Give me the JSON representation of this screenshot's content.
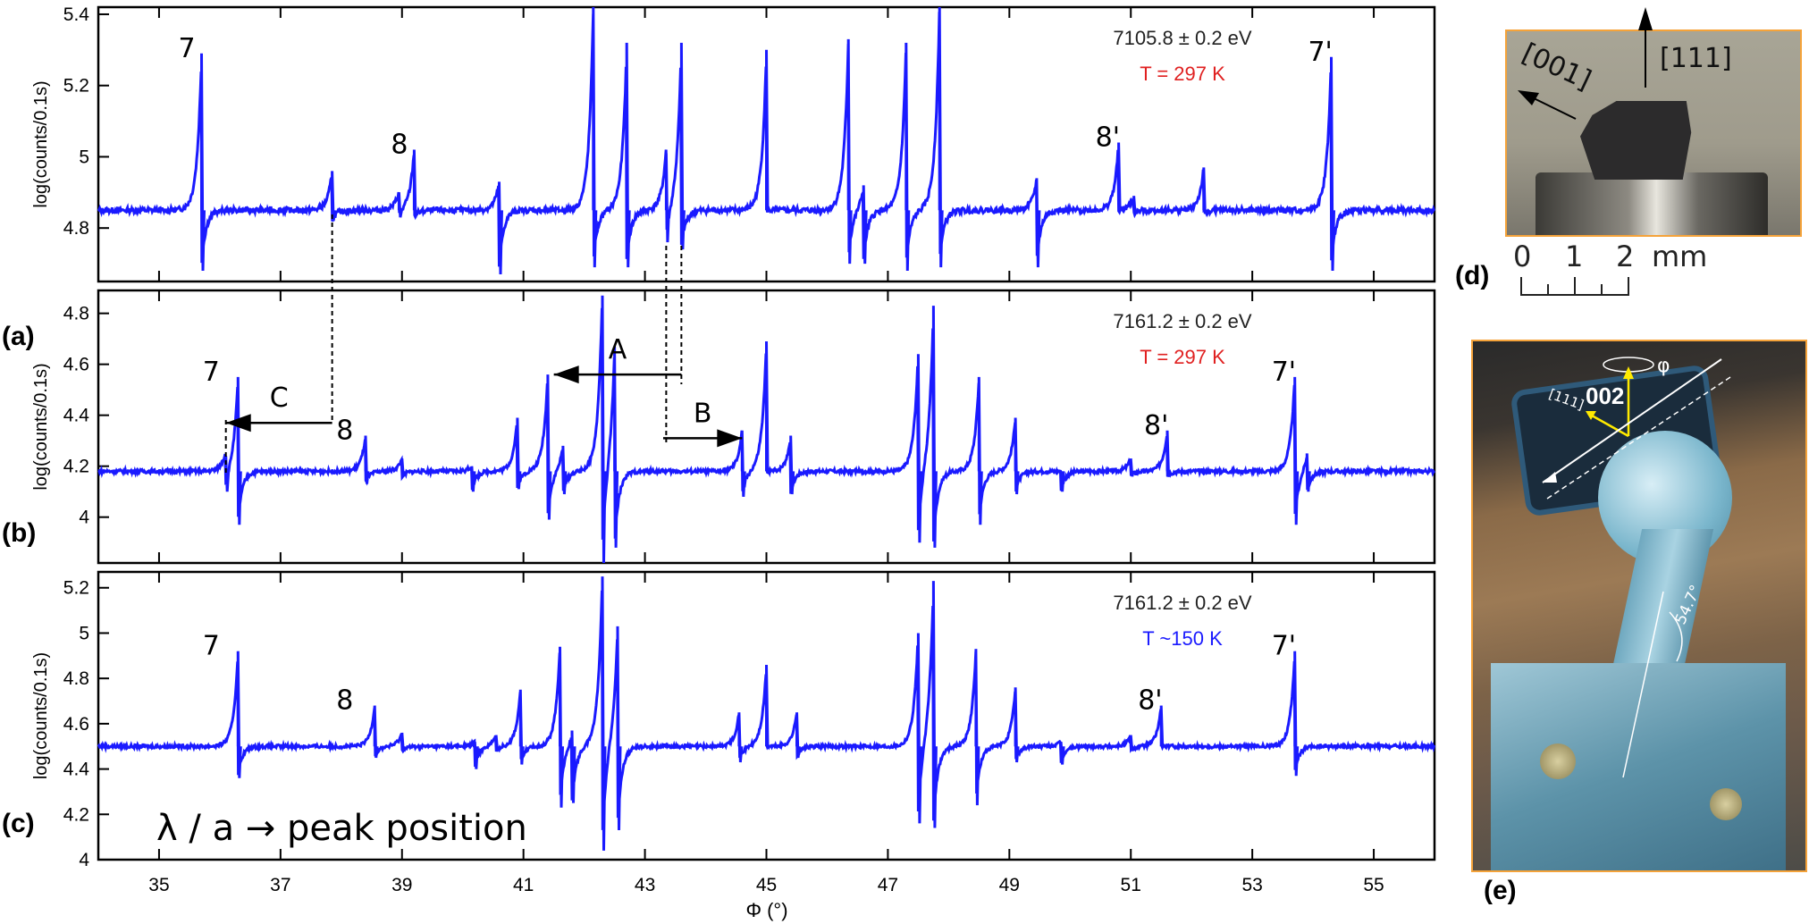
{
  "chart_data": [
    {
      "panel": "(a)",
      "type": "line",
      "annotation_energy": "7105.8 ± 0.2 eV",
      "annotation_temperature": "T = 297 K",
      "temperature_color": "#e02020",
      "ylabel": "log(counts/0.1s)",
      "xlabel": "",
      "xlim": [
        34,
        56
      ],
      "ylim": [
        4.65,
        5.42
      ],
      "yticks": [
        4.8,
        5,
        5.2,
        5.4
      ],
      "baseline": 4.85,
      "peak_labels": [
        {
          "text": "7",
          "x": 35.7,
          "y": 5.29
        },
        {
          "text": "8",
          "x": 39.2,
          "y": 5.02
        },
        {
          "text": "8'",
          "x": 50.8,
          "y": 5.04
        },
        {
          "text": "7'",
          "x": 54.3,
          "y": 5.28
        }
      ],
      "peaks": [
        {
          "x": 35.7,
          "max": 5.29,
          "min": 4.68
        },
        {
          "x": 37.85,
          "max": 4.96,
          "min": 4.82
        },
        {
          "x": 38.95,
          "max": 4.9,
          "min": 4.83
        },
        {
          "x": 39.2,
          "max": 5.02,
          "min": 4.83
        },
        {
          "x": 40.6,
          "max": 4.93,
          "min": 4.67
        },
        {
          "x": 42.15,
          "max": 5.42,
          "min": 4.69
        },
        {
          "x": 42.7,
          "max": 5.32,
          "min": 4.69
        },
        {
          "x": 43.35,
          "max": 5.01,
          "min": 4.76
        },
        {
          "x": 43.6,
          "max": 5.32,
          "min": 4.74
        },
        {
          "x": 45.0,
          "max": 5.3,
          "min": 4.85
        },
        {
          "x": 46.35,
          "max": 5.33,
          "min": 4.7
        },
        {
          "x": 46.6,
          "max": 4.92,
          "min": 4.7
        },
        {
          "x": 47.3,
          "max": 5.32,
          "min": 4.68
        },
        {
          "x": 47.85,
          "max": 5.42,
          "min": 4.69
        },
        {
          "x": 49.45,
          "max": 4.94,
          "min": 4.69
        },
        {
          "x": 50.8,
          "max": 5.04,
          "min": 4.85
        },
        {
          "x": 51.05,
          "max": 4.89,
          "min": 4.84
        },
        {
          "x": 52.2,
          "max": 4.97,
          "min": 4.84
        },
        {
          "x": 54.3,
          "max": 5.28,
          "min": 4.68
        }
      ]
    },
    {
      "panel": "(b)",
      "type": "line",
      "annotation_energy": "7161.2 ± 0.2 eV",
      "annotation_temperature": "T = 297 K",
      "temperature_color": "#e02020",
      "ylabel": "log(counts/0.1s)",
      "xlabel": "",
      "xlim": [
        34,
        56
      ],
      "ylim": [
        3.82,
        4.89
      ],
      "yticks": [
        4,
        4.2,
        4.4,
        4.6,
        4.8
      ],
      "baseline": 4.18,
      "peak_labels": [
        {
          "text": "7",
          "x": 36.1,
          "y": 4.55
        },
        {
          "text": "8",
          "x": 38.3,
          "y": 4.32
        },
        {
          "text": "8'",
          "x": 51.6,
          "y": 4.34
        },
        {
          "text": "7'",
          "x": 53.7,
          "y": 4.55
        }
      ],
      "arrows": [
        {
          "label": "A",
          "from_x": 43.6,
          "to_x": 41.5,
          "y": 4.56
        },
        {
          "label": "B",
          "from_x": 43.3,
          "to_x": 44.6,
          "y": 4.31
        },
        {
          "label": "C",
          "from_x": 37.85,
          "to_x": 36.1,
          "y": 4.37
        }
      ],
      "peaks": [
        {
          "x": 36.1,
          "max": 4.24,
          "min": 4.1
        },
        {
          "x": 36.3,
          "max": 4.55,
          "min": 3.97
        },
        {
          "x": 38.4,
          "max": 4.32,
          "min": 4.13
        },
        {
          "x": 39.0,
          "max": 4.23,
          "min": 4.16
        },
        {
          "x": 40.15,
          "max": 4.2,
          "min": 4.1
        },
        {
          "x": 40.9,
          "max": 4.39,
          "min": 4.11
        },
        {
          "x": 41.4,
          "max": 4.56,
          "min": 3.99
        },
        {
          "x": 41.65,
          "max": 4.28,
          "min": 4.09
        },
        {
          "x": 42.3,
          "max": 4.87,
          "min": 3.82
        },
        {
          "x": 42.5,
          "max": 4.67,
          "min": 3.88
        },
        {
          "x": 44.6,
          "max": 4.34,
          "min": 4.08
        },
        {
          "x": 45.0,
          "max": 4.69,
          "min": 4.18
        },
        {
          "x": 45.4,
          "max": 4.32,
          "min": 4.09
        },
        {
          "x": 47.5,
          "max": 4.64,
          "min": 3.9
        },
        {
          "x": 47.75,
          "max": 4.83,
          "min": 3.88
        },
        {
          "x": 48.5,
          "max": 4.55,
          "min": 3.97
        },
        {
          "x": 49.1,
          "max": 4.39,
          "min": 4.09
        },
        {
          "x": 49.85,
          "max": 4.18,
          "min": 4.1
        },
        {
          "x": 51.0,
          "max": 4.23,
          "min": 4.16
        },
        {
          "x": 51.6,
          "max": 4.34,
          "min": 4.16
        },
        {
          "x": 53.7,
          "max": 4.55,
          "min": 3.97
        },
        {
          "x": 53.9,
          "max": 4.25,
          "min": 4.1
        }
      ]
    },
    {
      "panel": "(c)",
      "type": "line",
      "annotation_energy": "7161.2 ± 0.2 eV",
      "annotation_temperature": "T ~150 K",
      "temperature_color": "#1a1aff",
      "ylabel": "log(counts/0.1s)",
      "xlabel": "Φ (°)",
      "xlim": [
        34,
        56
      ],
      "ylim": [
        4.0,
        5.27
      ],
      "yticks": [
        4,
        4.2,
        4.4,
        4.6,
        4.8,
        5,
        5.2
      ],
      "xticks": [
        35,
        37,
        39,
        41,
        43,
        45,
        47,
        49,
        51,
        53,
        55
      ],
      "baseline": 4.5,
      "peak_labels": [
        {
          "text": "7",
          "x": 36.1,
          "y": 4.92
        },
        {
          "text": "8",
          "x": 38.3,
          "y": 4.68
        },
        {
          "text": "8'",
          "x": 51.5,
          "y": 4.68
        },
        {
          "text": "7'",
          "x": 53.7,
          "y": 4.92
        }
      ],
      "text_annotation": "λ / a →  peak position",
      "peaks": [
        {
          "x": 36.3,
          "max": 4.92,
          "min": 4.36
        },
        {
          "x": 38.55,
          "max": 4.68,
          "min": 4.45
        },
        {
          "x": 39.0,
          "max": 4.56,
          "min": 4.48
        },
        {
          "x": 40.2,
          "max": 4.52,
          "min": 4.4
        },
        {
          "x": 40.55,
          "max": 4.55,
          "min": 4.48
        },
        {
          "x": 40.95,
          "max": 4.75,
          "min": 4.42
        },
        {
          "x": 41.6,
          "max": 4.94,
          "min": 4.23
        },
        {
          "x": 41.8,
          "max": 4.57,
          "min": 4.25
        },
        {
          "x": 42.3,
          "max": 5.25,
          "min": 4.04
        },
        {
          "x": 42.55,
          "max": 5.03,
          "min": 4.13
        },
        {
          "x": 44.55,
          "max": 4.65,
          "min": 4.43
        },
        {
          "x": 45.0,
          "max": 4.86,
          "min": 4.5
        },
        {
          "x": 45.5,
          "max": 4.65,
          "min": 4.45
        },
        {
          "x": 47.5,
          "max": 5.0,
          "min": 4.16
        },
        {
          "x": 47.75,
          "max": 5.23,
          "min": 4.14
        },
        {
          "x": 48.45,
          "max": 4.93,
          "min": 4.24
        },
        {
          "x": 49.1,
          "max": 4.76,
          "min": 4.43
        },
        {
          "x": 49.85,
          "max": 4.52,
          "min": 4.42
        },
        {
          "x": 51.0,
          "max": 4.55,
          "min": 4.48
        },
        {
          "x": 51.5,
          "max": 4.68,
          "min": 4.5
        },
        {
          "x": 53.7,
          "max": 4.92,
          "min": 4.37
        }
      ]
    }
  ],
  "panels": {
    "a": {
      "label": "(a)"
    },
    "b": {
      "label": "(b)"
    },
    "c": {
      "label": "(c)"
    },
    "d": {
      "label": "(d)",
      "arrow_111": "[111]",
      "arrow_001": "[001]",
      "scale_ticks": [
        "0",
        "1",
        "2"
      ],
      "scale_unit": "mm"
    },
    "e": {
      "label": "(e)",
      "label_002": "002",
      "label_111": "[111]",
      "label_phi": "φ",
      "angle": "54.7°"
    }
  },
  "colors": {
    "series": "#1a1aff",
    "axis": "#000000",
    "frame_photo": "#f5a33a",
    "temp_red": "#e02020",
    "temp_blue": "#1a1aff"
  }
}
